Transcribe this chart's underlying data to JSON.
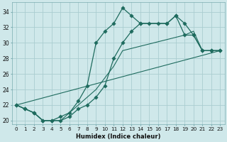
{
  "xlabel": "Humidex (Indice chaleur)",
  "background_color": "#cfe8ea",
  "grid_color": "#aacdd0",
  "line_color": "#1e6b5e",
  "xlim": [
    -0.5,
    23.5
  ],
  "ylim": [
    19.5,
    35.2
  ],
  "yticks": [
    20,
    22,
    24,
    26,
    28,
    30,
    32,
    34
  ],
  "xticks": [
    0,
    1,
    2,
    3,
    4,
    5,
    6,
    7,
    8,
    9,
    10,
    11,
    12,
    13,
    14,
    15,
    16,
    17,
    18,
    19,
    20,
    21,
    22,
    23
  ],
  "line1_x": [
    0,
    1,
    2,
    3,
    4,
    5,
    6,
    7,
    8,
    9,
    10,
    11,
    12,
    13,
    14,
    15,
    16,
    17,
    18,
    19,
    20,
    21,
    22,
    23
  ],
  "line1_y": [
    22,
    21.5,
    21,
    20,
    20,
    20.5,
    21,
    22.5,
    24.5,
    30,
    31.5,
    32.5,
    34.5,
    33.5,
    32.5,
    32.5,
    32.5,
    32.5,
    33.5,
    32.5,
    31,
    29,
    29,
    29
  ],
  "line2_x": [
    0,
    1,
    2,
    3,
    4,
    5,
    6,
    7,
    8,
    9,
    10,
    11,
    12,
    13,
    14,
    17,
    18,
    19,
    20,
    21,
    22,
    23
  ],
  "line2_y": [
    22,
    21.5,
    21,
    20,
    20,
    20,
    20.5,
    21.5,
    22,
    23,
    24.5,
    28,
    30,
    31.5,
    32.5,
    32.5,
    33.5,
    31,
    31,
    29,
    29,
    29
  ],
  "line3_x": [
    0,
    23
  ],
  "line3_y": [
    22,
    29
  ],
  "line4_x": [
    0,
    1,
    2,
    3,
    4,
    5,
    6,
    7,
    8,
    9,
    10,
    11,
    12,
    19,
    20,
    21,
    22,
    23
  ],
  "line4_y": [
    22,
    21.5,
    21,
    20,
    20,
    20,
    21,
    22,
    23,
    24,
    25.5,
    27,
    29,
    31,
    31.5,
    29,
    29,
    29
  ]
}
